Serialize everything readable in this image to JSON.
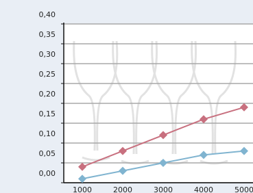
{
  "chart_data": {
    "type": "line",
    "categories": [
      "1000",
      "2000",
      "3000",
      "4000",
      "5000"
    ],
    "series": [
      {
        "color": "#c8707f",
        "values": [
          0.04,
          0.08,
          0.12,
          0.16,
          0.19
        ]
      },
      {
        "color": "#80b4d0",
        "values": [
          0.01,
          0.03,
          0.05,
          0.07,
          0.08
        ]
      }
    ],
    "ylim": [
      0,
      0.4
    ],
    "yticks": [
      {
        "value": 0,
        "label": "0,00"
      },
      {
        "value": 0.05,
        "label": "0,05"
      },
      {
        "value": 0.1,
        "label": "0,10"
      },
      {
        "value": 0.15,
        "label": "0,15"
      },
      {
        "value": 0.2,
        "label": "0,20"
      },
      {
        "value": 0.25,
        "label": "0,25"
      },
      {
        "value": 0.3,
        "label": "0,30"
      },
      {
        "value": 0.35,
        "label": "0,35"
      },
      {
        "value": 0.4,
        "label": "0,40"
      }
    ],
    "grid": true
  }
}
